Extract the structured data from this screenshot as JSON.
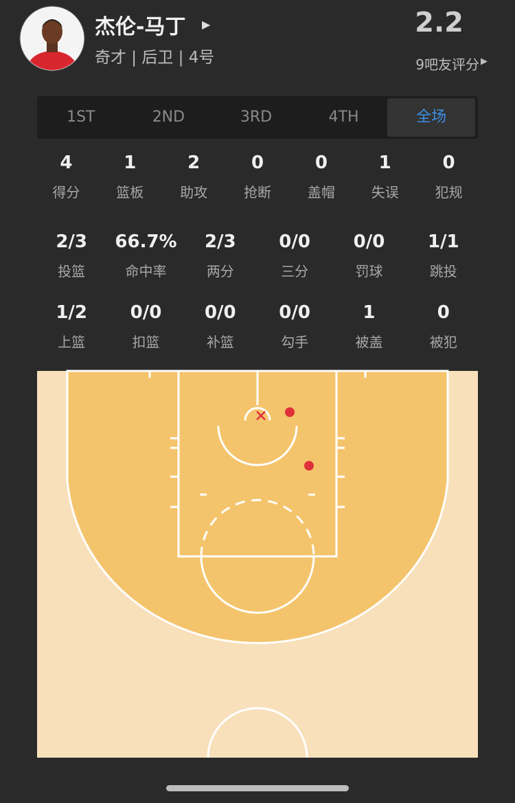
{
  "player": {
    "name": "杰伦-马丁",
    "info": "奇才 | 后卫 | 4号",
    "rating": 2.2,
    "rating_count": "9吧友评分"
  },
  "tabs": [
    "1ST",
    "2ND",
    "3RD",
    "4TH",
    "全场"
  ],
  "stats": [
    [
      {
        "value": 4,
        "label": "得分"
      },
      {
        "value": 1,
        "label": "篮板"
      },
      {
        "value": 2,
        "label": "助攻"
      },
      {
        "value": 0,
        "label": "抢断"
      },
      {
        "value": 0,
        "label": "盖帽"
      },
      {
        "value": 1,
        "label": "失误"
      },
      {
        "value": 0,
        "label": "犯规"
      }
    ],
    [
      {
        "value": "2/3",
        "label": "投篮"
      },
      {
        "value": "66.7%",
        "label": "命中率"
      },
      {
        "value": "2/3",
        "label": "两分"
      },
      {
        "value": "0/0",
        "label": "三分"
      },
      {
        "value": "0/0",
        "label": "罚球"
      },
      {
        "value": "1/1",
        "label": "跳投"
      }
    ],
    [
      {
        "value": "1/2",
        "label": "上篮"
      },
      {
        "value": "0/0",
        "label": "扣篮"
      },
      {
        "value": "0/0",
        "label": "补篮"
      },
      {
        "value": "0/0",
        "label": "勾手"
      },
      {
        "value": 1,
        "label": "被盖"
      },
      {
        "value": 0,
        "label": "被犯"
      }
    ]
  ]
}
